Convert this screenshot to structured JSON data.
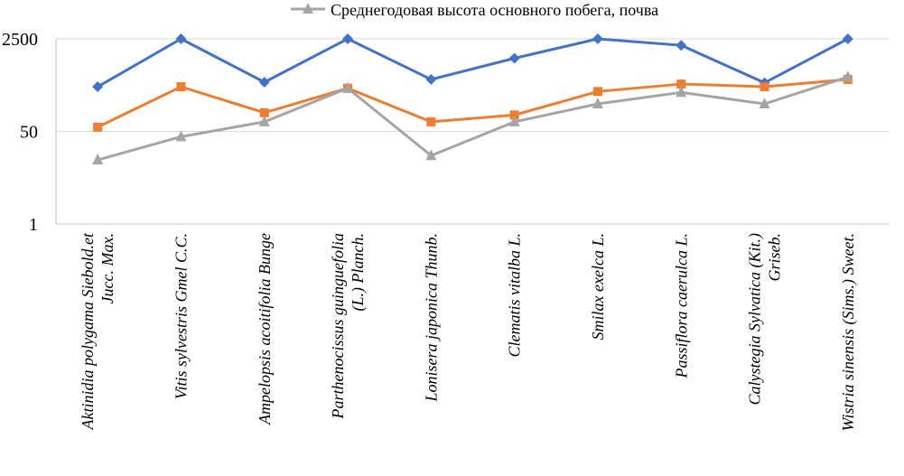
{
  "chart_data": {
    "type": "line",
    "title": "",
    "xlabel": "",
    "ylabel": "",
    "y_scale": "log",
    "ylim": [
      1,
      2500
    ],
    "y_ticks": [
      "1",
      "50",
      "2500"
    ],
    "legend": {
      "placement": "top",
      "visible_entries": [
        "Среднегодовая высота основного побега, почва"
      ]
    },
    "categories": [
      [
        "Aktinidia polygama Siebold.et",
        "Jucc. Max."
      ],
      [
        "Vitis sylvestris Gmel C.C."
      ],
      [
        "Ampelopsis acoitifolia Bunge"
      ],
      [
        "Parthenocissus guinguefolia",
        "(L.) Planch."
      ],
      [
        "Lonisera japonica Thunb."
      ],
      [
        "Clematis vitalba L."
      ],
      [
        "Smilax exelca L."
      ],
      [
        "Passiflora caerulca L."
      ],
      [
        "Calystegia Sylvatica (Kit.)",
        "Griseb."
      ],
      [
        "Wistria sinensis (Sims.) Sweet."
      ]
    ],
    "series": [
      {
        "name": "",
        "color": "#4472C4",
        "marker": "diamond",
        "values": [
          330,
          2500,
          400,
          2500,
          450,
          1100,
          2500,
          1900,
          390,
          2500
        ]
      },
      {
        "name": "",
        "color": "#ED7D31",
        "marker": "square",
        "values": [
          60,
          330,
          110,
          310,
          75,
          100,
          270,
          370,
          330,
          450
        ]
      },
      {
        "name": "Среднегодовая высота основного побега, почва",
        "color": "#A5A5A5",
        "marker": "triangle",
        "values": [
          15,
          40,
          75,
          310,
          18,
          75,
          160,
          260,
          160,
          500
        ]
      }
    ]
  }
}
